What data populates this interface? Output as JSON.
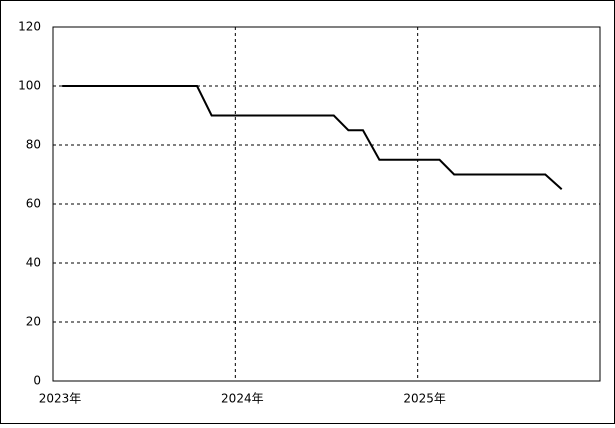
{
  "chart_data": {
    "type": "line",
    "x": [
      2023.05,
      2023.79,
      2023.87,
      2024.54,
      2024.62,
      2024.7,
      2024.79,
      2025.12,
      2025.2,
      2025.7,
      2025.79
    ],
    "values": [
      100,
      100,
      90,
      90,
      85,
      85,
      75,
      75,
      70,
      70,
      65
    ],
    "color": "#000000",
    "xlim": [
      2023,
      2026
    ],
    "xticks": [
      {
        "value": 2023,
        "label": "2023年"
      },
      {
        "value": 2024,
        "label": "2024年"
      },
      {
        "value": 2025,
        "label": "2025年"
      }
    ],
    "ylim": [
      0,
      120
    ],
    "yticks": [
      0,
      20,
      40,
      60,
      80,
      100,
      120
    ],
    "grid": true
  }
}
